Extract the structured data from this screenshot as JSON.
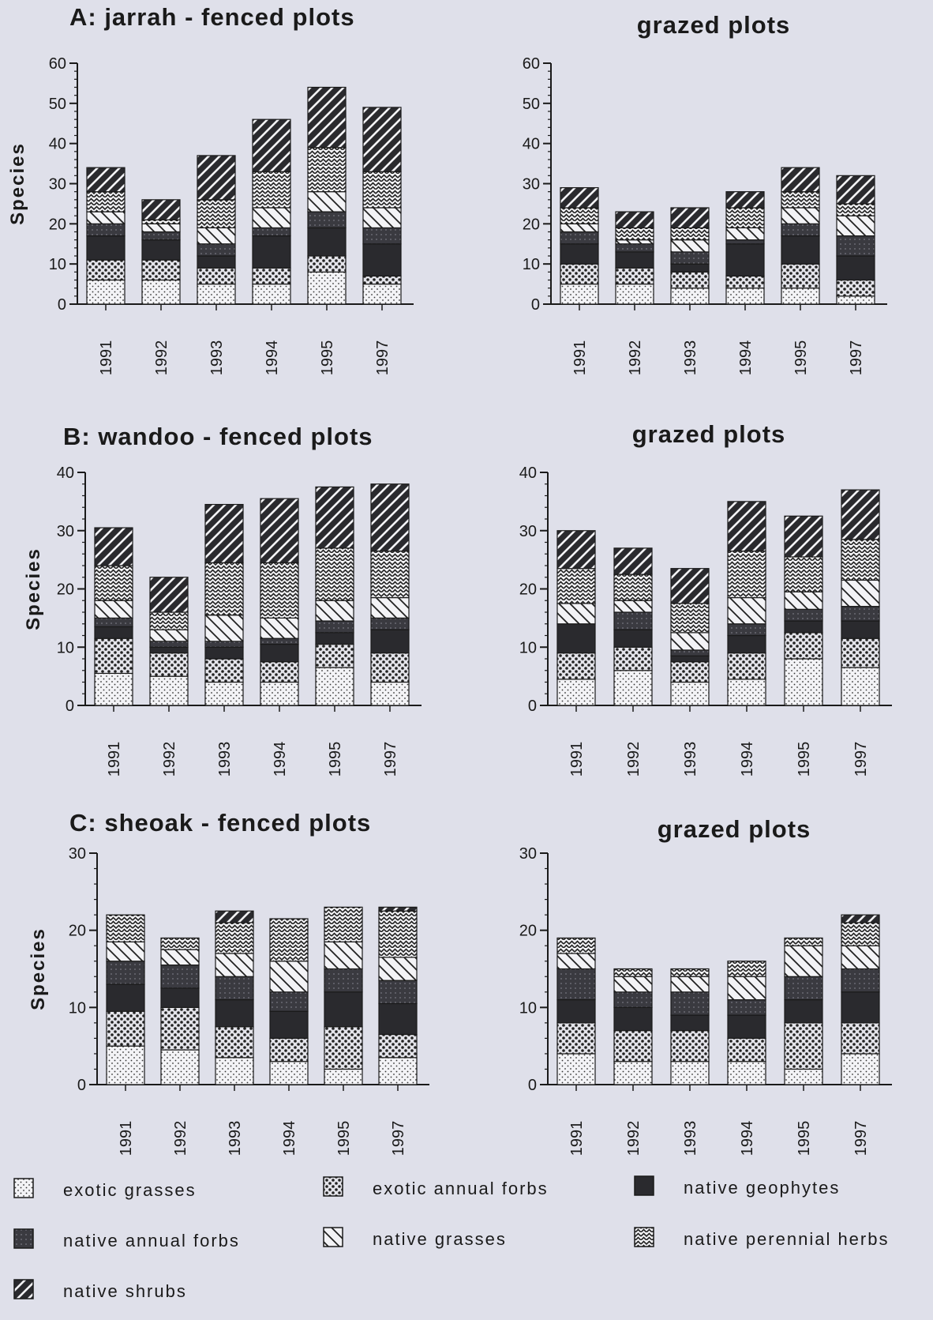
{
  "chart_data": [
    {
      "type": "bar",
      "stacked": true,
      "title": "A: jarrah -   fenced plots",
      "ylabel": "Species",
      "ylim": [
        0,
        60
      ],
      "yticks": [
        0,
        10,
        20,
        30,
        40,
        50,
        60
      ],
      "categories": [
        "1991",
        "1992",
        "1993",
        "1994",
        "1995",
        "1997"
      ],
      "series": [
        {
          "name": "exotic grasses",
          "values": [
            6,
            6,
            5,
            5,
            8,
            5
          ]
        },
        {
          "name": "exotic annual forbs",
          "values": [
            5,
            5,
            4,
            4,
            4,
            2
          ]
        },
        {
          "name": "native geophytes",
          "values": [
            6,
            5,
            3,
            8,
            7,
            8
          ]
        },
        {
          "name": "native annual forbs",
          "values": [
            3,
            2,
            3,
            2,
            4,
            4
          ]
        },
        {
          "name": "native grasses",
          "values": [
            3,
            2,
            4,
            5,
            5,
            5
          ]
        },
        {
          "name": "native perennial herbs",
          "values": [
            5,
            1,
            7,
            9,
            11,
            9
          ]
        },
        {
          "name": "native shrubs",
          "values": [
            6,
            5,
            11,
            13,
            15,
            16
          ]
        }
      ]
    },
    {
      "type": "bar",
      "stacked": true,
      "title": "grazed  plots",
      "ylabel": "",
      "ylim": [
        0,
        60
      ],
      "yticks": [
        0,
        10,
        20,
        30,
        40,
        50,
        60
      ],
      "categories": [
        "1991",
        "1992",
        "1993",
        "1994",
        "1995",
        "1997"
      ],
      "series": [
        {
          "name": "exotic grasses",
          "values": [
            5,
            5,
            4,
            4,
            4,
            2
          ]
        },
        {
          "name": "exotic annual forbs",
          "values": [
            5,
            4,
            4,
            3,
            6,
            4
          ]
        },
        {
          "name": "native geophytes",
          "values": [
            5,
            4,
            2,
            8,
            7,
            6
          ]
        },
        {
          "name": "native annual forbs",
          "values": [
            3,
            2,
            3,
            1,
            3,
            5
          ]
        },
        {
          "name": "native grasses",
          "values": [
            2,
            1,
            3,
            3,
            4,
            5
          ]
        },
        {
          "name": "native perennial herbs",
          "values": [
            4,
            3,
            3,
            5,
            4,
            3
          ]
        },
        {
          "name": "native shrubs",
          "values": [
            5,
            4,
            5,
            4,
            6,
            7
          ]
        }
      ]
    },
    {
      "type": "bar",
      "stacked": true,
      "title": "B:  wandoo  -  fenced  plots",
      "ylabel": "Species",
      "ylim": [
        0,
        40
      ],
      "yticks": [
        0,
        10,
        20,
        30,
        40
      ],
      "categories": [
        "1991",
        "1992",
        "1993",
        "1994",
        "1995",
        "1997"
      ],
      "series": [
        {
          "name": "exotic grasses",
          "values": [
            5.5,
            5,
            4,
            4,
            6.5,
            4
          ]
        },
        {
          "name": "exotic annual forbs",
          "values": [
            6,
            4,
            4,
            3.5,
            4,
            5
          ]
        },
        {
          "name": "native geophytes",
          "values": [
            2,
            1,
            2,
            3,
            2,
            4
          ]
        },
        {
          "name": "native annual forbs",
          "values": [
            1.5,
            1,
            1,
            1,
            2,
            2
          ]
        },
        {
          "name": "native grasses",
          "values": [
            3,
            2,
            4.5,
            3.5,
            3.5,
            3.5
          ]
        },
        {
          "name": "native perennial herbs",
          "values": [
            6,
            3,
            9,
            9.5,
            9,
            8
          ]
        },
        {
          "name": "native shrubs",
          "values": [
            6.5,
            6,
            10,
            11,
            10.5,
            11.5
          ]
        }
      ]
    },
    {
      "type": "bar",
      "stacked": true,
      "title": "grazed  plots",
      "ylabel": "",
      "ylim": [
        0,
        40
      ],
      "yticks": [
        0,
        10,
        20,
        30,
        40
      ],
      "categories": [
        "1991",
        "1992",
        "1993",
        "1994",
        "1995",
        "1997"
      ],
      "series": [
        {
          "name": "exotic grasses",
          "values": [
            4.5,
            6,
            4,
            4.5,
            8,
            6.5
          ]
        },
        {
          "name": "exotic annual forbs",
          "values": [
            4.5,
            4,
            3.5,
            4.5,
            4.5,
            5
          ]
        },
        {
          "name": "native geophytes",
          "values": [
            5,
            3,
            1,
            3,
            2,
            3
          ]
        },
        {
          "name": "native annual forbs",
          "values": [
            0,
            3,
            1,
            2,
            2,
            2.5
          ]
        },
        {
          "name": "native grasses",
          "values": [
            3.5,
            2,
            3,
            4.5,
            3,
            4.5
          ]
        },
        {
          "name": "native perennial herbs",
          "values": [
            6,
            4.5,
            5,
            8,
            6,
            7
          ]
        },
        {
          "name": "native shrubs",
          "values": [
            6.5,
            4.5,
            6,
            8.5,
            7,
            8.5
          ]
        }
      ]
    },
    {
      "type": "bar",
      "stacked": true,
      "title": "C:   sheoak   - fenced  plots",
      "ylabel": "Species",
      "ylim": [
        0,
        30
      ],
      "yticks": [
        0,
        10,
        20,
        30
      ],
      "categories": [
        "1991",
        "1992",
        "1993",
        "1994",
        "1995",
        "1997"
      ],
      "series": [
        {
          "name": "exotic grasses",
          "values": [
            5,
            4.5,
            3.5,
            3,
            2,
            3.5
          ]
        },
        {
          "name": "exotic annual forbs",
          "values": [
            4.5,
            5.5,
            4,
            3,
            5.5,
            3
          ]
        },
        {
          "name": "native geophytes",
          "values": [
            3.5,
            2.5,
            3.5,
            3.5,
            4.5,
            4
          ]
        },
        {
          "name": "native annual forbs",
          "values": [
            3,
            3,
            3,
            2.5,
            3,
            3
          ]
        },
        {
          "name": "native grasses",
          "values": [
            2.5,
            2,
            3,
            4,
            3.5,
            3
          ]
        },
        {
          "name": "native perennial herbs",
          "values": [
            3.5,
            1.5,
            4,
            5.5,
            4.5,
            6
          ]
        },
        {
          "name": "native shrubs",
          "values": [
            0,
            0,
            1.5,
            0,
            0,
            0.5
          ]
        }
      ]
    },
    {
      "type": "bar",
      "stacked": true,
      "title": "grazed  plots",
      "ylabel": "",
      "ylim": [
        0,
        30
      ],
      "yticks": [
        0,
        10,
        20,
        30
      ],
      "categories": [
        "1991",
        "1992",
        "1993",
        "1994",
        "1995",
        "1997"
      ],
      "series": [
        {
          "name": "exotic grasses",
          "values": [
            4,
            3,
            3,
            3,
            2,
            4
          ]
        },
        {
          "name": "exotic annual forbs",
          "values": [
            4,
            4,
            4,
            3,
            6,
            4
          ]
        },
        {
          "name": "native geophytes",
          "values": [
            3,
            3,
            2,
            3,
            3,
            4
          ]
        },
        {
          "name": "native annual forbs",
          "values": [
            4,
            2,
            3,
            2,
            3,
            3
          ]
        },
        {
          "name": "native grasses",
          "values": [
            2,
            2,
            2,
            3,
            4,
            3
          ]
        },
        {
          "name": "native perennial herbs",
          "values": [
            2,
            1,
            1,
            2,
            1,
            3
          ]
        },
        {
          "name": "native shrubs",
          "values": [
            0,
            0,
            0,
            0,
            0,
            1
          ]
        }
      ]
    }
  ],
  "legend": {
    "items": [
      {
        "label": "exotic  grasses",
        "pattern": "exotic-grasses"
      },
      {
        "label": "exotic  annual  forbs",
        "pattern": "exotic-annual-forbs"
      },
      {
        "label": "native  geophytes",
        "pattern": "native-geophytes"
      },
      {
        "label": "native  annual  forbs",
        "pattern": "native-annual-forbs"
      },
      {
        "label": "native  grasses",
        "pattern": "native-grasses"
      },
      {
        "label": "native  perennial  herbs",
        "pattern": "native-perennial-herbs"
      },
      {
        "label": "native  shrubs",
        "pattern": "native-shrubs"
      }
    ]
  },
  "colors": {
    "background": "#dfe0ea",
    "ink": "#1a1a1a",
    "geophytes": "#2a2a2e",
    "annual_forbs": "#3a3a40"
  }
}
